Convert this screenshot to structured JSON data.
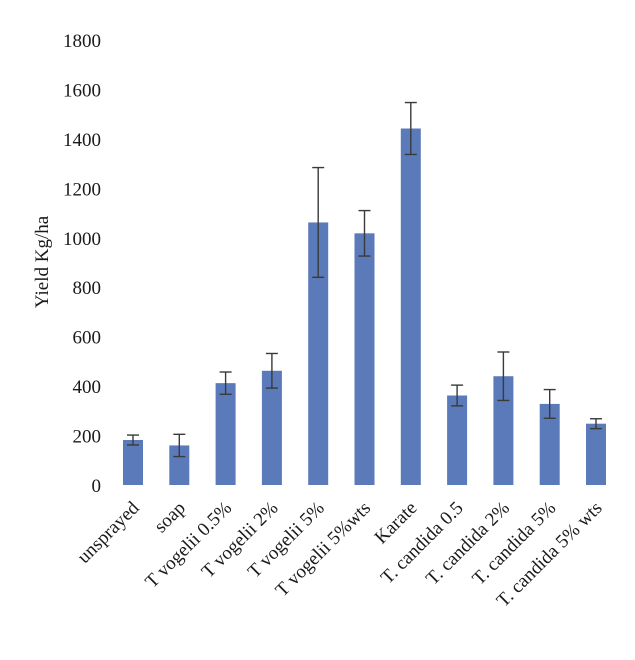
{
  "chart_data": {
    "type": "bar",
    "title": "",
    "xlabel": "",
    "ylabel": "Yield Kg/ha",
    "ylim": [
      0,
      1800
    ],
    "yticks": [
      0,
      200,
      400,
      600,
      800,
      1000,
      1200,
      1400,
      1600,
      1800
    ],
    "grid": false,
    "legend": "none",
    "bar_color": "#5b7ab9",
    "error_bar_color": "#3a3a3a",
    "categories": [
      "unsprayed",
      "soap",
      "T vogelii 0.5%",
      "T vogelii 2%",
      "T vogelii 5%",
      "T vogelii 5%wts",
      "Karate",
      "T. candida 0.5",
      "T. candida 2%",
      "T. candida 5%",
      "T. candida 5% wts"
    ],
    "values": [
      182,
      160,
      412,
      462,
      1062,
      1018,
      1442,
      362,
      440,
      328,
      248
    ],
    "errors": [
      20,
      45,
      45,
      70,
      222,
      92,
      105,
      42,
      98,
      58,
      20
    ]
  }
}
